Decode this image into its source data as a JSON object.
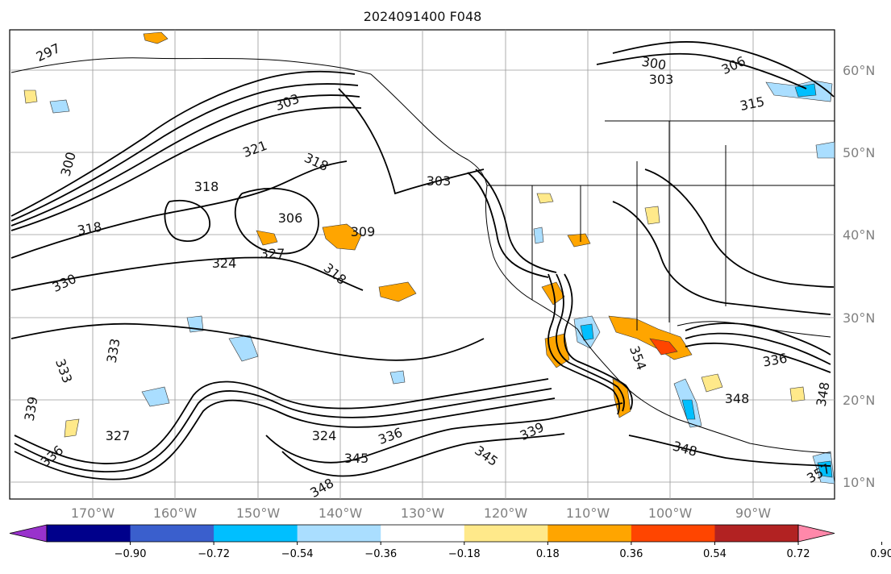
{
  "title": "2024091400 F048",
  "lon_labels": [
    "170°W",
    "160°W",
    "150°W",
    "140°W",
    "130°W",
    "120°W",
    "110°W",
    "100°W",
    "90°W"
  ],
  "lat_labels": [
    "60°N",
    "50°N",
    "40°N",
    "30°N",
    "20°N",
    "10°N"
  ],
  "colorbar": {
    "colors": [
      "#9932cc",
      "#00008b",
      "#3a5fcd",
      "#00bfff",
      "#aadeff",
      "#ffffff",
      "#ffe98a",
      "#ffa500",
      "#ff4500",
      "#b22222",
      "#ff88aa"
    ],
    "labels": [
      "−0.90",
      "−0.72",
      "−0.54",
      "−0.36",
      "−0.18",
      "0.18",
      "0.36",
      "0.54",
      "0.72",
      "0.90"
    ]
  },
  "contour_labels": [
    "297",
    "303",
    "300",
    "321",
    "318",
    "318",
    "318",
    "306",
    "309",
    "303",
    "306",
    "300",
    "303",
    "315",
    "324",
    "327",
    "318",
    "330",
    "333",
    "333",
    "339",
    "327",
    "324",
    "336",
    "336",
    "345",
    "339",
    "345",
    "348",
    "348",
    "354",
    "336",
    "348",
    "348",
    "357"
  ]
}
